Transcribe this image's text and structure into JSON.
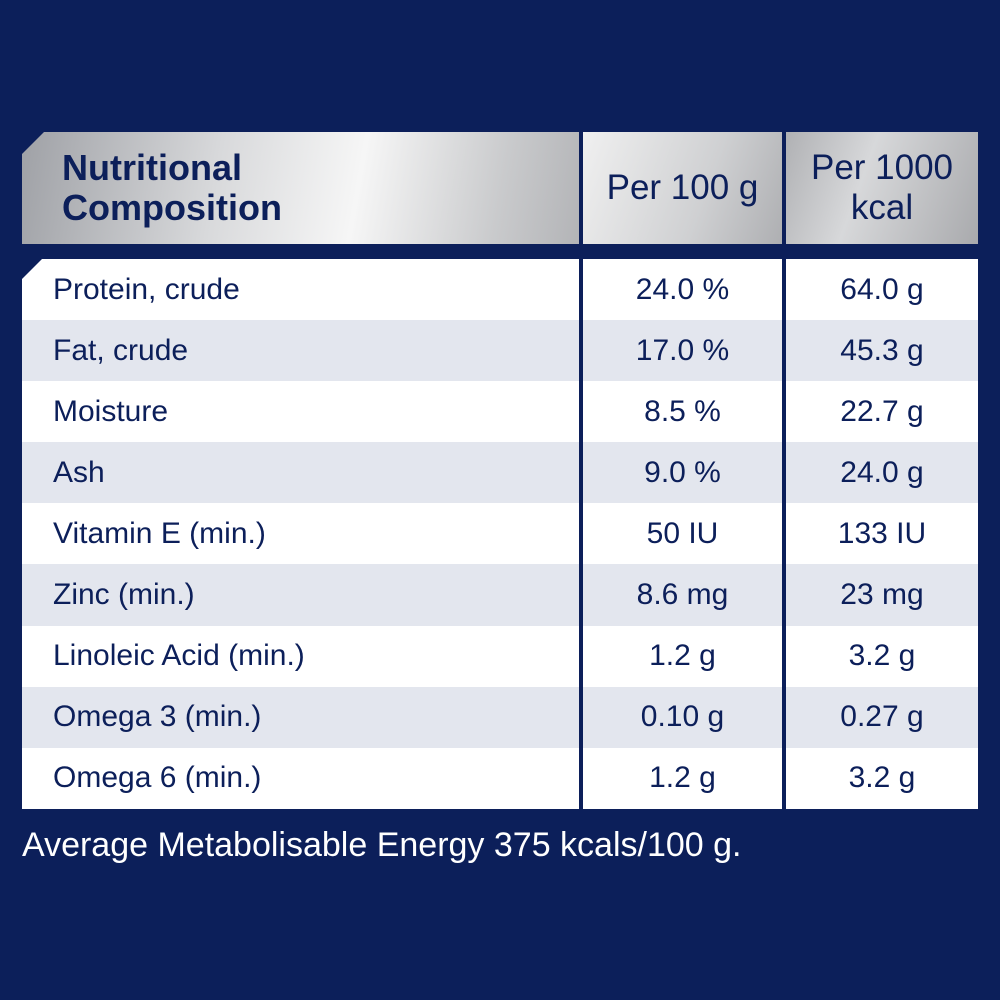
{
  "header": {
    "title": "Nutritional Composition",
    "col1": "Per 100 g",
    "col2": "Per 1000 kcal"
  },
  "rows": [
    {
      "name": "Protein, crude",
      "per100g": "24.0 %",
      "per1000kcal": "64.0 g"
    },
    {
      "name": "Fat, crude",
      "per100g": "17.0 %",
      "per1000kcal": "45.3 g"
    },
    {
      "name": "Moisture",
      "per100g": "8.5 %",
      "per1000kcal": "22.7 g"
    },
    {
      "name": "Ash",
      "per100g": "9.0 %",
      "per1000kcal": "24.0 g"
    },
    {
      "name": "Vitamin E (min.)",
      "per100g": "50 IU",
      "per1000kcal": "133 IU"
    },
    {
      "name": "Zinc (min.)",
      "per100g": "8.6 mg",
      "per1000kcal": "23 mg"
    },
    {
      "name": "Linoleic Acid (min.)",
      "per100g": "1.2 g",
      "per1000kcal": "3.2 g"
    },
    {
      "name": "Omega 3 (min.)",
      "per100g": "0.10 g",
      "per1000kcal": "0.27 g"
    },
    {
      "name": "Omega 6 (min.)",
      "per100g": "1.2 g",
      "per1000kcal": "3.2 g"
    }
  ],
  "footer": "Average Metabolisable Energy 375 kcals/100 g.",
  "colors": {
    "background": "#0c1f5a",
    "text": "#0c1f5a",
    "row_alt": "#e3e6ee"
  }
}
